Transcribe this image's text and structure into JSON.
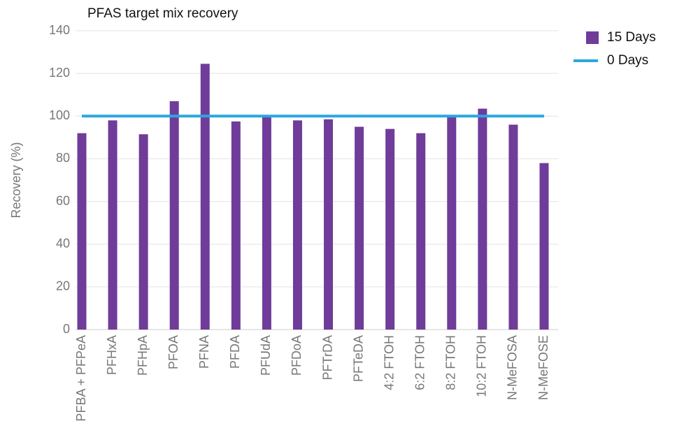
{
  "chart_data": {
    "type": "bar",
    "title": "PFAS target mix recovery",
    "y_label": "Recovery (%)",
    "categories": [
      "PFBA + PFPeA",
      "PFHxA",
      "PFHpA",
      "PFOA",
      "PFNA",
      "PFDA",
      "PFUdA",
      "PFDoA",
      "PFTrDA",
      "PFTeDA",
      "4:2 FTOH",
      "6:2 FTOH",
      "8:2 FTOH",
      "10:2 FTOH",
      "N-MeFOSA",
      "N-MeFOSE"
    ],
    "series": [
      {
        "name": "15 Days",
        "type": "bar",
        "color": "#6f3c9a",
        "values": [
          92,
          98,
          91.5,
          107,
          124.5,
          97.5,
          100,
          98,
          98.5,
          95,
          94,
          92,
          100,
          103.5,
          96,
          78
        ]
      },
      {
        "name": "0 Days",
        "type": "line",
        "color": "#29a8e0",
        "values": [
          100,
          100,
          100,
          100,
          100,
          100,
          100,
          100,
          100,
          100,
          100,
          100,
          100,
          100,
          100,
          100
        ]
      }
    ],
    "ylim": [
      0,
      140
    ],
    "yticks": [
      0,
      20,
      40,
      60,
      80,
      100,
      120,
      140
    ],
    "grid": true,
    "legend": "top-right"
  }
}
